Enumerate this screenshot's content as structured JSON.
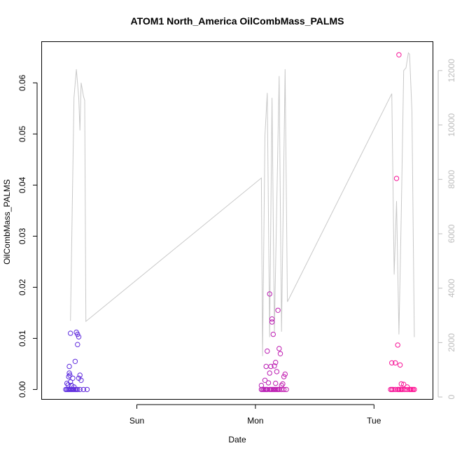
{
  "chart_data": {
    "type": "scatter",
    "title": "ATOM1 North_America OilCombMass_PALMS",
    "xlabel": "Date",
    "ylabel": "OilCombMass_PALMS",
    "x_ticks": [
      "Sun",
      "Mon",
      "Tue"
    ],
    "x_tick_pos": [
      0.5,
      1.5,
      2.5
    ],
    "xlim": [
      -0.3,
      3.0
    ],
    "ylim": [
      -0.002,
      0.068
    ],
    "y_ticks": [
      0.0,
      0.01,
      0.02,
      0.03,
      0.04,
      0.05,
      0.06
    ],
    "y_tick_labels": [
      "0.00",
      "0.01",
      "0.02",
      "0.03",
      "0.04",
      "0.05",
      "0.06"
    ],
    "right_axis": {
      "ylim": [
        -100,
        13050
      ],
      "ticks": [
        0,
        2000,
        4000,
        6000,
        8000,
        10000,
        12000
      ],
      "tick_labels": [
        "0",
        "2000",
        "4000",
        "6000",
        "8000",
        "10000",
        "12000"
      ],
      "color": "#bdbdbd"
    },
    "grid": false,
    "series": [
      {
        "type": "line",
        "color": "#c8c8c8",
        "points": [
          [
            -0.06,
            2800
          ],
          [
            -0.03,
            11000
          ],
          [
            -0.01,
            12050
          ],
          [
            0.01,
            11000
          ],
          [
            0.02,
            9800
          ],
          [
            0.03,
            11550
          ],
          [
            0.05,
            11050
          ],
          [
            0.06,
            10900
          ],
          [
            0.07,
            2780
          ],
          [
            1.55,
            8050
          ],
          [
            1.56,
            1500
          ],
          [
            1.58,
            9600
          ],
          [
            1.6,
            11180
          ],
          [
            1.62,
            2200
          ],
          [
            1.64,
            11000
          ],
          [
            1.66,
            2400
          ],
          [
            1.7,
            11800
          ],
          [
            1.72,
            2400
          ],
          [
            1.75,
            12050
          ],
          [
            1.77,
            3500
          ],
          [
            2.65,
            11150
          ],
          [
            2.67,
            4500
          ],
          [
            2.69,
            7200
          ],
          [
            2.71,
            2300
          ],
          [
            2.73,
            6800
          ],
          [
            2.75,
            12000
          ],
          [
            2.77,
            12100
          ],
          [
            2.79,
            12650
          ],
          [
            2.8,
            12600
          ],
          [
            2.82,
            10500
          ],
          [
            2.84,
            2200
          ]
        ]
      },
      {
        "type": "points",
        "color_start": "#5b2de0",
        "color_end": "#ff1493",
        "values": [
          [
            -0.1,
            0.0
          ],
          [
            -0.09,
            0.0
          ],
          [
            -0.08,
            0.0
          ],
          [
            -0.07,
            0.0
          ],
          [
            -0.06,
            0.0
          ],
          [
            -0.05,
            0.0
          ],
          [
            -0.04,
            0.0
          ],
          [
            -0.03,
            0.0
          ],
          [
            -0.02,
            0.0
          ],
          [
            -0.01,
            0.0
          ],
          [
            0.0,
            0.0
          ],
          [
            0.02,
            0.0
          ],
          [
            0.05,
            0.0
          ],
          [
            0.08,
            0.0
          ],
          [
            -0.09,
            0.0012
          ],
          [
            -0.08,
            0.0009
          ],
          [
            -0.075,
            0.0025
          ],
          [
            -0.07,
            0.0032
          ],
          [
            -0.065,
            0.0028
          ],
          [
            -0.06,
            0.0015
          ],
          [
            -0.05,
            0.0008
          ],
          [
            -0.04,
            0.0022
          ],
          [
            -0.03,
            0.0005
          ],
          [
            0.01,
            0.0022
          ],
          [
            0.02,
            0.0028
          ],
          [
            0.03,
            0.0018
          ],
          [
            -0.07,
            0.0045
          ],
          [
            -0.06,
            0.011
          ],
          [
            -0.02,
            0.0055
          ],
          [
            -0.01,
            0.0112
          ],
          [
            0.0,
            0.0108
          ],
          [
            0.0,
            0.0088
          ],
          [
            0.01,
            0.0103
          ],
          [
            1.55,
            0.0
          ],
          [
            1.56,
            0.0
          ],
          [
            1.57,
            0.0
          ],
          [
            1.58,
            0.0
          ],
          [
            1.59,
            0.0
          ],
          [
            1.6,
            0.0
          ],
          [
            1.62,
            0.0
          ],
          [
            1.63,
            0.0
          ],
          [
            1.64,
            0.0
          ],
          [
            1.65,
            0.0
          ],
          [
            1.66,
            0.0
          ],
          [
            1.67,
            0.0
          ],
          [
            1.68,
            0.0
          ],
          [
            1.69,
            0.0
          ],
          [
            1.7,
            0.0
          ],
          [
            1.72,
            0.0
          ],
          [
            1.74,
            0.0
          ],
          [
            1.76,
            0.0
          ],
          [
            1.55,
            0.0008
          ],
          [
            1.58,
            0.0018
          ],
          [
            1.59,
            0.0045
          ],
          [
            1.6,
            0.0075
          ],
          [
            1.61,
            0.0013
          ],
          [
            1.62,
            0.0032
          ],
          [
            1.63,
            0.0045
          ],
          [
            1.64,
            0.0138
          ],
          [
            1.65,
            0.0108
          ],
          [
            1.66,
            0.0046
          ],
          [
            1.67,
            0.0012
          ],
          [
            1.68,
            0.0035
          ],
          [
            1.69,
            0.0155
          ],
          [
            1.7,
            0.008
          ],
          [
            1.71,
            0.007
          ],
          [
            1.72,
            0.0008
          ],
          [
            1.73,
            0.0011
          ],
          [
            1.74,
            0.0025
          ],
          [
            1.75,
            0.003
          ],
          [
            1.62,
            0.0187
          ],
          [
            1.64,
            0.0132
          ],
          [
            1.67,
            0.0053
          ],
          [
            2.64,
            0.0
          ],
          [
            2.65,
            0.0
          ],
          [
            2.66,
            0.0
          ],
          [
            2.68,
            0.0
          ],
          [
            2.7,
            0.0
          ],
          [
            2.71,
            0.0
          ],
          [
            2.72,
            0.0
          ],
          [
            2.73,
            0.0
          ],
          [
            2.74,
            0.0
          ],
          [
            2.76,
            0.0
          ],
          [
            2.78,
            0.0
          ],
          [
            2.8,
            0.0
          ],
          [
            2.81,
            0.0
          ],
          [
            2.82,
            0.0
          ],
          [
            2.83,
            0.0
          ],
          [
            2.84,
            0.0
          ],
          [
            2.65,
            0.0052
          ],
          [
            2.68,
            0.0052
          ],
          [
            2.72,
            0.0048
          ],
          [
            2.73,
            0.0011
          ],
          [
            2.75,
            0.001
          ],
          [
            2.78,
            0.0005
          ],
          [
            2.7,
            0.0087
          ],
          [
            2.69,
            0.0413
          ],
          [
            2.71,
            0.0655
          ]
        ]
      }
    ]
  }
}
